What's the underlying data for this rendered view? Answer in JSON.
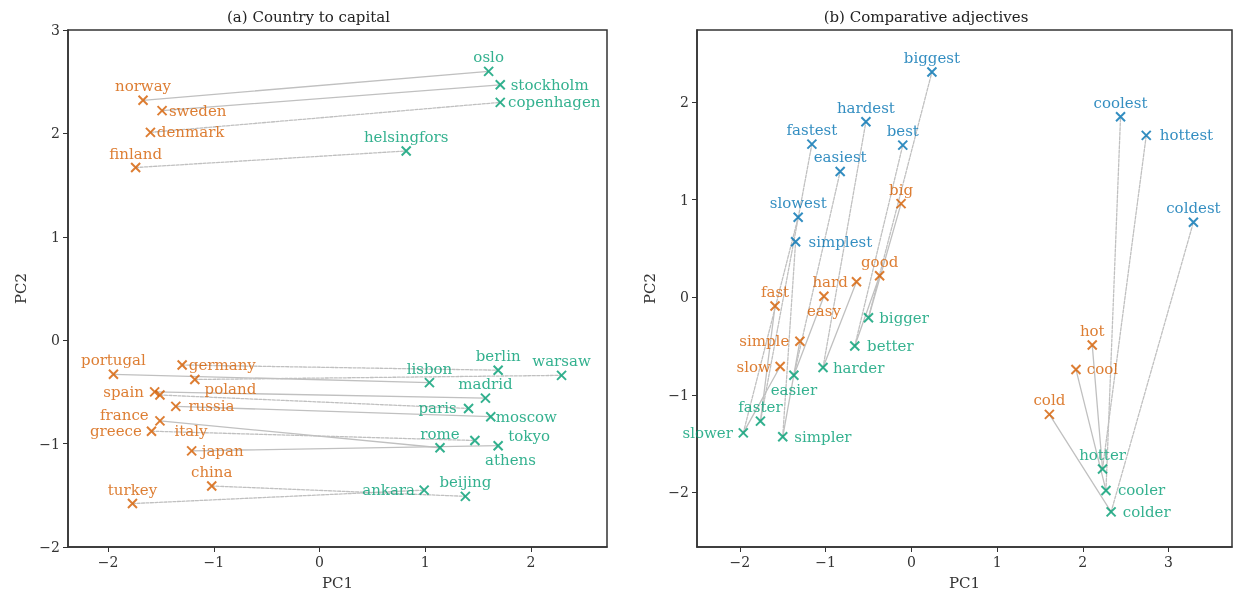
{
  "chart_data": [
    {
      "type": "scatter",
      "title": "(a) Country to capital",
      "xlabel": "PC1",
      "ylabel": "PC2",
      "xlim": [
        -2.38,
        2.72
      ],
      "ylim": [
        -2,
        3
      ],
      "xticks": [
        -2,
        -1,
        0,
        1,
        2
      ],
      "yticks": [
        -2,
        -1,
        0,
        1,
        2,
        3
      ],
      "marker": "cross",
      "series": [
        {
          "type": "line",
          "marker": "none",
          "color": "#c0c0c0",
          "line_style": "solid",
          "x": [
            -1.67,
            1.6
          ],
          "values": [
            2.32,
            2.6
          ]
        },
        {
          "type": "line",
          "marker": "none",
          "color": "#c0c0c0",
          "line_style": "solid",
          "x": [
            -1.49,
            1.71
          ],
          "values": [
            2.22,
            2.47
          ]
        },
        {
          "type": "line",
          "marker": "none",
          "color": "#c0c0c0",
          "line_style": "dashed",
          "x": [
            -1.6,
            1.71
          ],
          "values": [
            2.01,
            2.3
          ]
        },
        {
          "type": "line",
          "marker": "none",
          "color": "#c0c0c0",
          "line_style": "dashed",
          "x": [
            -1.74,
            0.82
          ],
          "values": [
            1.67,
            1.83
          ]
        },
        {
          "type": "line",
          "marker": "none",
          "color": "#c0c0c0",
          "line_style": "solid",
          "x": [
            -1.95,
            1.04
          ],
          "values": [
            -0.33,
            -0.41
          ]
        },
        {
          "type": "line",
          "marker": "none",
          "color": "#c0c0c0",
          "line_style": "dashed",
          "x": [
            -1.3,
            1.69
          ],
          "values": [
            -0.24,
            -0.29
          ]
        },
        {
          "type": "line",
          "marker": "none",
          "color": "#c0c0c0",
          "line_style": "dashed",
          "x": [
            -1.18,
            2.29
          ],
          "values": [
            -0.38,
            -0.34
          ]
        },
        {
          "type": "line",
          "marker": "none",
          "color": "#c0c0c0",
          "line_style": "solid",
          "x": [
            -1.56,
            1.57
          ],
          "values": [
            -0.5,
            -0.56
          ]
        },
        {
          "type": "line",
          "marker": "none",
          "color": "#c0c0c0",
          "line_style": "dashed",
          "x": [
            -1.51,
            1.41
          ],
          "values": [
            -0.53,
            -0.66
          ]
        },
        {
          "type": "line",
          "marker": "none",
          "color": "#c0c0c0",
          "line_style": "solid",
          "x": [
            -1.36,
            1.62
          ],
          "values": [
            -0.64,
            -0.74
          ]
        },
        {
          "type": "line",
          "marker": "none",
          "color": "#c0c0c0",
          "line_style": "solid",
          "x": [
            -1.51,
            1.14
          ],
          "values": [
            -0.78,
            -1.04
          ]
        },
        {
          "type": "line",
          "marker": "none",
          "color": "#c0c0c0",
          "line_style": "dashed",
          "x": [
            -1.59,
            1.47
          ],
          "values": [
            -0.88,
            -0.97
          ]
        },
        {
          "type": "line",
          "marker": "none",
          "color": "#c0c0c0",
          "line_style": "solid",
          "x": [
            -1.21,
            1.69
          ],
          "values": [
            -1.07,
            -1.02
          ]
        },
        {
          "type": "line",
          "marker": "none",
          "color": "#c0c0c0",
          "line_style": "dashed",
          "x": [
            -1.02,
            1.38
          ],
          "values": [
            -1.41,
            -1.51
          ]
        },
        {
          "type": "line",
          "marker": "none",
          "color": "#c0c0c0",
          "line_style": "dashed",
          "x": [
            -1.77,
            0.99
          ],
          "values": [
            -1.58,
            -1.45
          ]
        },
        {
          "color": "#d55e00",
          "x": [
            -1.67,
            -1.49,
            -1.6,
            -1.74,
            -1.95,
            -1.3,
            -1.18,
            -1.56,
            -1.51,
            -1.36,
            -1.51,
            -1.59,
            -1.21,
            -1.02,
            -1.77
          ],
          "values": [
            2.32,
            2.22,
            2.01,
            1.67,
            -0.33,
            -0.24,
            -0.38,
            -0.5,
            -0.53,
            -0.64,
            -0.78,
            -0.88,
            -1.07,
            -1.41,
            -1.58
          ],
          "value_labels": [
            "norway",
            "sweden",
            "denmark",
            "finland",
            "portugal",
            "germany",
            "poland",
            "spain",
            "france",
            "russia",
            "italy",
            "greece",
            "japan",
            "china",
            "turkey"
          ]
        },
        {
          "color": "#009e73",
          "x": [
            1.6,
            1.71,
            1.71,
            0.82,
            1.04,
            1.69,
            2.29,
            1.57,
            1.41,
            1.62,
            1.14,
            1.47,
            1.69,
            1.38,
            0.99
          ],
          "values": [
            2.6,
            2.47,
            2.3,
            1.83,
            -0.41,
            -0.29,
            -0.34,
            -0.56,
            -0.66,
            -0.74,
            -1.04,
            -0.97,
            -1.02,
            -1.51,
            -1.45
          ],
          "value_labels": [
            "oslo",
            "stockholm",
            "copenhagen",
            "helsingfors",
            "lisbon",
            "berlin",
            "warsaw",
            "madrid",
            "paris",
            "moscow",
            "rome",
            "athens",
            "tokyo",
            "beijing",
            "ankara"
          ]
        }
      ]
    },
    {
      "type": "scatter",
      "title": "(b) Comparative adjectives",
      "xlabel": "PC1",
      "ylabel": "PC2",
      "xlim": [
        -2.5,
        3.74
      ],
      "ylim": [
        -2.56,
        2.74
      ],
      "xticks": [
        -2,
        -1,
        0,
        1,
        2,
        3
      ],
      "yticks": [
        -2,
        -1,
        0,
        1,
        2
      ],
      "marker": "cross",
      "series": [
        {
          "type": "line",
          "marker": "none",
          "color": "#c0c0c0",
          "line_style": "solid",
          "x": [
            -0.12,
            -0.5
          ],
          "values": [
            0.96,
            -0.21
          ]
        },
        {
          "type": "line",
          "marker": "none",
          "color": "#c0c0c0",
          "line_style": "dashed",
          "x": [
            -0.5,
            0.24
          ],
          "values": [
            -0.21,
            2.31
          ]
        },
        {
          "type": "line",
          "marker": "none",
          "color": "#c0c0c0",
          "line_style": "solid",
          "x": [
            -0.37,
            -0.66
          ],
          "values": [
            0.22,
            -0.5
          ]
        },
        {
          "type": "line",
          "marker": "none",
          "color": "#c0c0c0",
          "line_style": "dashed",
          "x": [
            -0.66,
            -0.1
          ],
          "values": [
            -0.5,
            1.56
          ]
        },
        {
          "type": "line",
          "marker": "none",
          "color": "#c0c0c0",
          "line_style": "solid",
          "x": [
            -0.64,
            -1.03
          ],
          "values": [
            0.16,
            -0.72
          ]
        },
        {
          "type": "line",
          "marker": "none",
          "color": "#c0c0c0",
          "line_style": "dashed",
          "x": [
            -1.03,
            -0.53
          ],
          "values": [
            -0.72,
            1.8
          ]
        },
        {
          "type": "line",
          "marker": "none",
          "color": "#c0c0c0",
          "line_style": "solid",
          "x": [
            -1.02,
            -1.37
          ],
          "values": [
            0.01,
            -0.8
          ]
        },
        {
          "type": "line",
          "marker": "none",
          "color": "#c0c0c0",
          "line_style": "dashed",
          "x": [
            -1.37,
            -0.83
          ],
          "values": [
            -0.8,
            1.29
          ]
        },
        {
          "type": "line",
          "marker": "none",
          "color": "#c0c0c0",
          "line_style": "solid",
          "x": [
            -1.59,
            -1.76
          ],
          "values": [
            -0.09,
            -1.27
          ]
        },
        {
          "type": "line",
          "marker": "none",
          "color": "#c0c0c0",
          "line_style": "dashed",
          "x": [
            -1.76,
            -1.16
          ],
          "values": [
            -1.27,
            1.57
          ]
        },
        {
          "type": "line",
          "marker": "none",
          "color": "#c0c0c0",
          "line_style": "solid",
          "x": [
            -1.3,
            -1.5
          ],
          "values": [
            -0.45,
            -1.43
          ]
        },
        {
          "type": "line",
          "marker": "none",
          "color": "#c0c0c0",
          "line_style": "dashed",
          "x": [
            -1.5,
            -1.35
          ],
          "values": [
            -1.43,
            0.57
          ]
        },
        {
          "type": "line",
          "marker": "none",
          "color": "#c0c0c0",
          "line_style": "solid",
          "x": [
            -1.53,
            -1.96
          ],
          "values": [
            -0.71,
            -1.39
          ]
        },
        {
          "type": "line",
          "marker": "none",
          "color": "#c0c0c0",
          "line_style": "dashed",
          "x": [
            -1.96,
            -1.32
          ],
          "values": [
            -1.39,
            0.82
          ]
        },
        {
          "type": "line",
          "marker": "none",
          "color": "#c0c0c0",
          "line_style": "solid",
          "x": [
            2.11,
            2.23
          ],
          "values": [
            -0.49,
            -1.76
          ]
        },
        {
          "type": "line",
          "marker": "none",
          "color": "#c0c0c0",
          "line_style": "dashed",
          "x": [
            2.23,
            2.74
          ],
          "values": [
            -1.76,
            1.66
          ]
        },
        {
          "type": "line",
          "marker": "none",
          "color": "#c0c0c0",
          "line_style": "solid",
          "x": [
            1.92,
            2.27
          ],
          "values": [
            -0.74,
            -1.98
          ]
        },
        {
          "type": "line",
          "marker": "none",
          "color": "#c0c0c0",
          "line_style": "dashed",
          "x": [
            2.27,
            2.44
          ],
          "values": [
            -1.98,
            1.85
          ]
        },
        {
          "type": "line",
          "marker": "none",
          "color": "#c0c0c0",
          "line_style": "solid",
          "x": [
            1.61,
            2.33
          ],
          "values": [
            -1.2,
            -2.2
          ]
        },
        {
          "type": "line",
          "marker": "none",
          "color": "#c0c0c0",
          "line_style": "dashed",
          "x": [
            2.33,
            3.29
          ],
          "values": [
            -2.2,
            0.77
          ]
        },
        {
          "color": "#d55e00",
          "x": [
            -0.12,
            -0.37,
            -0.64,
            -1.02,
            -1.59,
            -1.3,
            -1.53,
            2.11,
            1.92,
            1.61
          ],
          "values": [
            0.96,
            0.22,
            0.16,
            0.01,
            -0.09,
            -0.45,
            -0.71,
            -0.49,
            -0.74,
            -1.2
          ],
          "value_labels": [
            "big",
            "good",
            "hard",
            "easy",
            "fast",
            "simple",
            "slow",
            "hot",
            "cool",
            "cold"
          ]
        },
        {
          "color": "#009e73",
          "x": [
            -0.5,
            -0.66,
            -1.03,
            -1.37,
            -1.76,
            -1.5,
            -1.96,
            2.23,
            2.27,
            2.33
          ],
          "values": [
            -0.21,
            -0.5,
            -0.72,
            -0.8,
            -1.27,
            -1.43,
            -1.39,
            -1.76,
            -1.98,
            -2.2
          ],
          "value_labels": [
            "bigger",
            "better",
            "harder",
            "easier",
            "faster",
            "simpler",
            "slower",
            "hotter",
            "cooler",
            "colder"
          ]
        },
        {
          "color": "#0072b2",
          "x": [
            0.24,
            -0.1,
            -0.53,
            -0.83,
            -1.16,
            -1.35,
            -1.32,
            2.74,
            2.44,
            3.29
          ],
          "values": [
            2.31,
            1.56,
            1.8,
            1.29,
            1.57,
            0.57,
            0.82,
            1.66,
            1.85,
            0.77
          ],
          "value_labels": [
            "biggest",
            "best",
            "hardest",
            "easiest",
            "fastest",
            "simplest",
            "slowest",
            "hottest",
            "coolest",
            "coldest"
          ]
        }
      ]
    }
  ]
}
